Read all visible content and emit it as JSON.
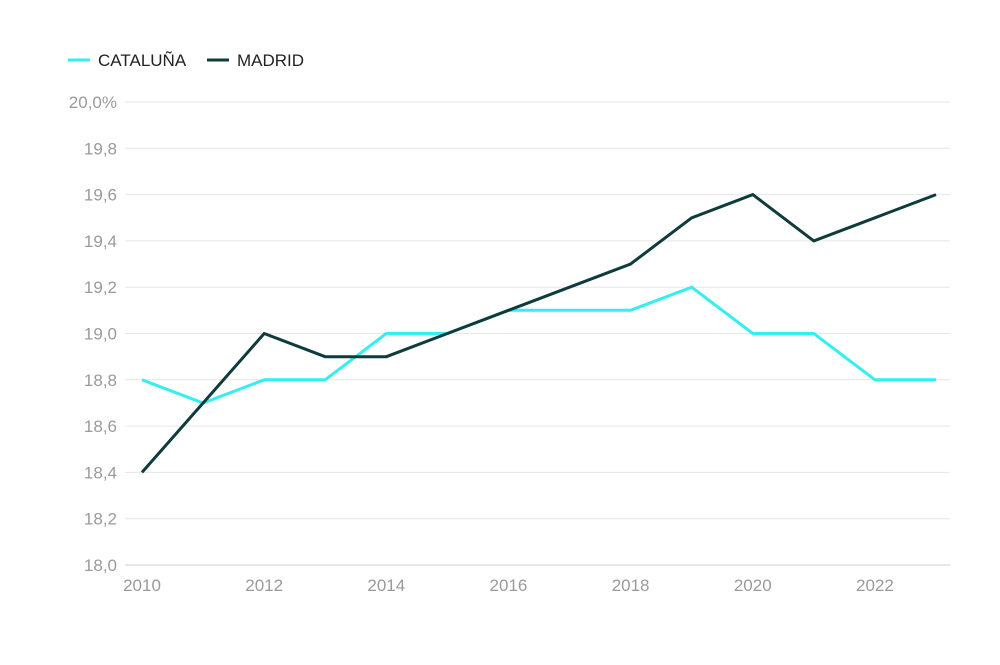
{
  "chart_data": {
    "type": "line",
    "x": [
      2010,
      2011,
      2012,
      2013,
      2014,
      2015,
      2016,
      2017,
      2018,
      2019,
      2020,
      2021,
      2022,
      2023
    ],
    "series": [
      {
        "name": "CATALUÑA",
        "color": "#34eef0",
        "values": [
          18.8,
          18.7,
          18.8,
          18.8,
          19.0,
          19.0,
          19.1,
          19.1,
          19.1,
          19.2,
          19.0,
          19.0,
          18.8,
          18.8
        ]
      },
      {
        "name": "MADRID",
        "color": "#0f3b3c",
        "values": [
          18.4,
          18.7,
          19.0,
          18.9,
          18.9,
          19.0,
          19.1,
          19.2,
          19.3,
          19.5,
          19.6,
          19.4,
          19.5,
          19.6
        ]
      }
    ],
    "ylim": [
      18.0,
      20.0
    ],
    "xlim": [
      2010,
      2023
    ],
    "y_ticks": [
      "18,0",
      "18,2",
      "18,4",
      "18,6",
      "18,8",
      "19,0",
      "19,2",
      "19,4",
      "19,6",
      "19,8",
      "20,0%"
    ],
    "y_tick_values": [
      18.0,
      18.2,
      18.4,
      18.6,
      18.8,
      19.0,
      19.2,
      19.4,
      19.6,
      19.8,
      20.0
    ],
    "x_ticks": [
      "2010",
      "2012",
      "2014",
      "2016",
      "2018",
      "2020",
      "2022"
    ],
    "x_tick_values": [
      2010,
      2012,
      2014,
      2016,
      2018,
      2020,
      2022
    ],
    "grid": true,
    "legend_position": "top-left",
    "title": "",
    "xlabel": "",
    "ylabel": ""
  }
}
